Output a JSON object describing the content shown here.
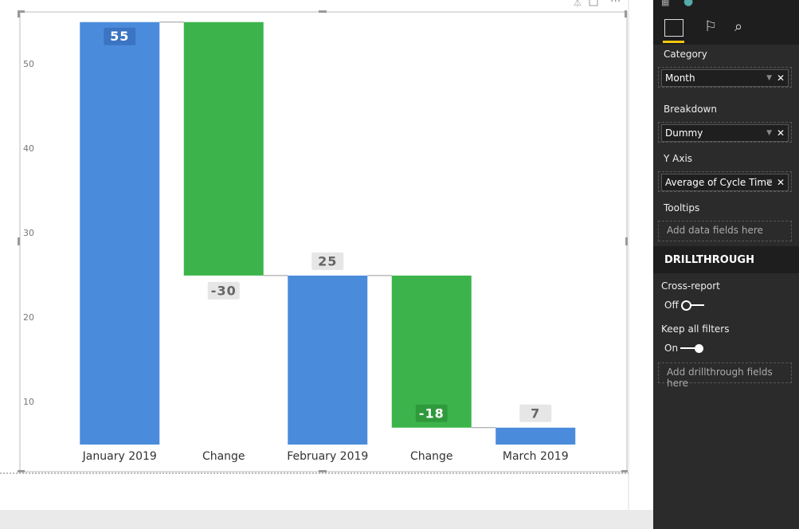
{
  "chart_data": {
    "type": "waterfall",
    "categories": [
      "January 2019",
      "Change",
      "February 2019",
      "Change",
      "March 2019"
    ],
    "values": [
      55,
      -30,
      25,
      -18,
      7
    ],
    "is_total": [
      true,
      false,
      true,
      false,
      true
    ],
    "total_color": "#4a8cdb",
    "change_color": "#3cb44b",
    "ylim": [
      5,
      56.2
    ],
    "yticks": [
      10,
      20,
      30,
      40,
      50
    ],
    "grid": false
  },
  "panel": {
    "wells": [
      {
        "label": "Category",
        "field": "Month"
      },
      {
        "label": "Breakdown",
        "field": "Dummy"
      },
      {
        "label": "Y Axis",
        "field": "Average of Cycle Time"
      },
      {
        "label": "Tooltips",
        "placeholder": "Add data fields here"
      }
    ],
    "drillthrough": {
      "title": "DRILLTHROUGH",
      "cross_report": {
        "label": "Cross-report",
        "state": "Off"
      },
      "keep_filters": {
        "label": "Keep all filters",
        "state": "On"
      },
      "placeholder": "Add drillthrough fields here"
    }
  }
}
